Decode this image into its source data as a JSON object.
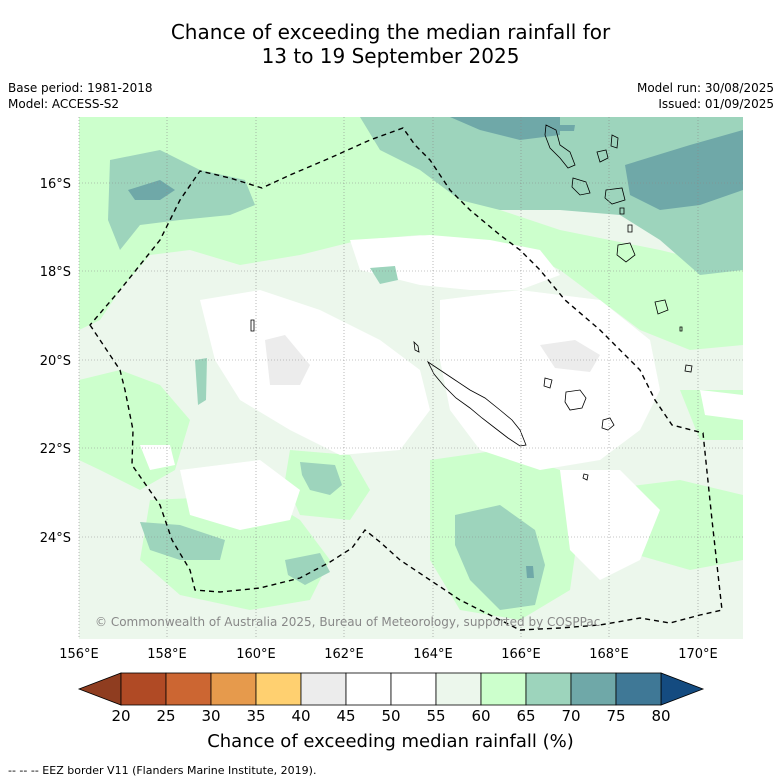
{
  "title": {
    "line1": "Chance of exceeding the median rainfall for",
    "line2": "13 to 19 September 2025"
  },
  "meta": {
    "base_period": "Base period: 1981-2018",
    "model": "Model: ACCESS-S2",
    "model_run": "Model run: 30/08/2025",
    "issued": "Issued: 01/09/2025"
  },
  "map": {
    "lon_ticks": [
      "156°E",
      "158°E",
      "160°E",
      "162°E",
      "164°E",
      "166°E",
      "168°E",
      "170°E"
    ],
    "lat_ticks": [
      "16°S",
      "18°S",
      "20°S",
      "22°S",
      "24°S"
    ],
    "copyright": "© Commonwealth of Australia 2025, Bureau of Meteorology, supported by COSPPac"
  },
  "colorbar": {
    "ticks": [
      "20",
      "25",
      "30",
      "35",
      "40",
      "45",
      "50",
      "55",
      "60",
      "65",
      "70",
      "75",
      "80"
    ],
    "colors": [
      "#b04a25",
      "#cc6632",
      "#e69a4c",
      "#ffd070",
      "#ececec",
      "#ffffff",
      "#ffffff",
      "#ecf7ec",
      "#ccffcc",
      "#9dd4bc",
      "#6fa8a8",
      "#3f7896"
    ],
    "under_color": "#8f3d20",
    "over_color": "#144b80",
    "label": "Chance of exceeding median rainfall (%)"
  },
  "legend": {
    "eez_text": "--  --  -- EEZ border V11 (Flanders Marine Institute, 2019)."
  }
}
